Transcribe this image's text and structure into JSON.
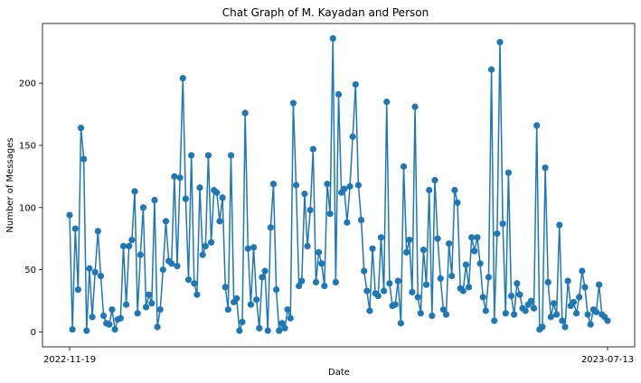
{
  "chart_data": {
    "type": "line",
    "title": "Chat Graph of M. Kayadan and Person",
    "xlabel": "Date",
    "ylabel": "Number of Messages",
    "x_tick_labels": [
      "2022-11-19",
      "2023-07-13"
    ],
    "y_ticks": [
      0,
      50,
      100,
      150,
      200
    ],
    "ylim": [
      -12,
      248
    ],
    "grid": false,
    "legend": "none",
    "markers": "circle",
    "color": "#1f77b4",
    "series": [
      {
        "values": [
          94,
          2,
          83,
          34,
          164,
          139,
          1,
          51,
          12,
          48,
          81,
          45,
          13,
          7,
          6,
          18,
          2,
          10,
          11,
          69,
          22,
          69,
          74,
          113,
          15,
          62,
          100,
          20,
          30,
          23,
          106,
          4,
          18,
          50,
          89,
          57,
          55,
          125,
          53,
          124,
          204,
          107,
          42,
          142,
          39,
          30,
          116,
          62,
          69,
          142,
          72,
          114,
          112,
          89,
          108,
          36,
          18,
          142,
          24,
          27,
          1,
          8,
          176,
          67,
          22,
          68,
          26,
          3,
          44,
          49,
          1,
          84,
          119,
          34,
          1,
          7,
          3,
          18,
          11,
          184,
          118,
          37,
          41,
          111,
          69,
          98,
          147,
          40,
          64,
          55,
          37,
          119,
          95,
          236,
          40,
          191,
          112,
          115,
          88,
          117,
          157,
          199,
          118,
          90,
          49,
          33,
          17,
          67,
          31,
          29,
          76,
          33,
          185,
          39,
          21,
          22,
          41,
          7,
          133,
          64,
          74,
          32,
          181,
          28,
          15,
          66,
          38,
          114,
          13,
          122,
          75,
          43,
          18,
          14,
          71,
          45,
          114,
          104,
          35,
          33,
          54,
          36,
          76,
          65,
          76,
          55,
          28,
          17,
          44,
          211,
          9,
          79,
          233,
          87,
          15,
          128,
          29,
          14,
          39,
          30,
          19,
          17,
          22,
          25,
          19,
          166,
          2,
          4,
          132,
          40,
          12,
          23,
          14,
          86,
          9,
          4,
          41,
          21,
          24,
          15,
          28,
          49,
          36,
          14,
          6,
          18,
          16,
          38,
          14,
          12,
          9
        ]
      }
    ]
  }
}
